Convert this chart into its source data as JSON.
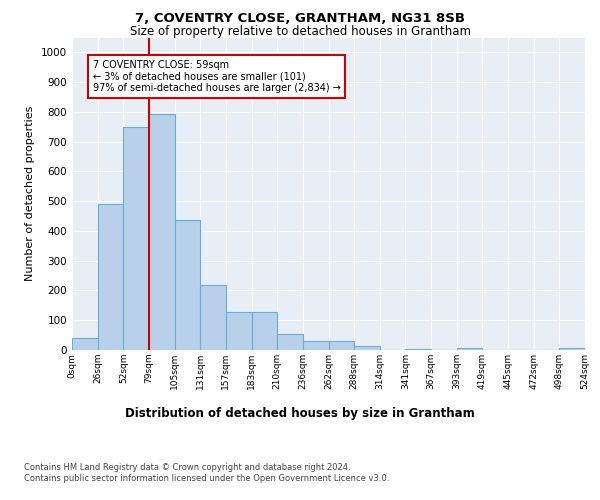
{
  "title1": "7, COVENTRY CLOSE, GRANTHAM, NG31 8SB",
  "title2": "Size of property relative to detached houses in Grantham",
  "xlabel": "Distribution of detached houses by size in Grantham",
  "ylabel": "Number of detached properties",
  "footer1": "Contains HM Land Registry data © Crown copyright and database right 2024.",
  "footer2": "Contains public sector information licensed under the Open Government Licence v3.0.",
  "annotation_line1": "7 COVENTRY CLOSE: 59sqm",
  "annotation_line2": "← 3% of detached houses are smaller (101)",
  "annotation_line3": "97% of semi-detached houses are larger (2,834) →",
  "bar_values": [
    42,
    490,
    748,
    792,
    436,
    218,
    127,
    127,
    54,
    29,
    29,
    13,
    0,
    5,
    0,
    8,
    0,
    0,
    0,
    7
  ],
  "bin_labels": [
    "0sqm",
    "26sqm",
    "52sqm",
    "79sqm",
    "105sqm",
    "131sqm",
    "157sqm",
    "183sqm",
    "210sqm",
    "236sqm",
    "262sqm",
    "288sqm",
    "314sqm",
    "341sqm",
    "367sqm",
    "393sqm",
    "419sqm",
    "445sqm",
    "472sqm",
    "498sqm",
    "524sqm"
  ],
  "bar_color": "#b8d0ea",
  "bar_edge_color": "#6aaed6",
  "bg_color": "#e8eef5",
  "grid_color": "#ffffff",
  "vline_color": "#cc0000",
  "annotation_box_color": "#cc0000",
  "ylim": [
    0,
    1050
  ],
  "yticks": [
    0,
    100,
    200,
    300,
    400,
    500,
    600,
    700,
    800,
    900,
    1000
  ],
  "title1_fontsize": 9.5,
  "title2_fontsize": 8.5,
  "ylabel_fontsize": 8.0,
  "xlabel_fontsize": 8.5
}
